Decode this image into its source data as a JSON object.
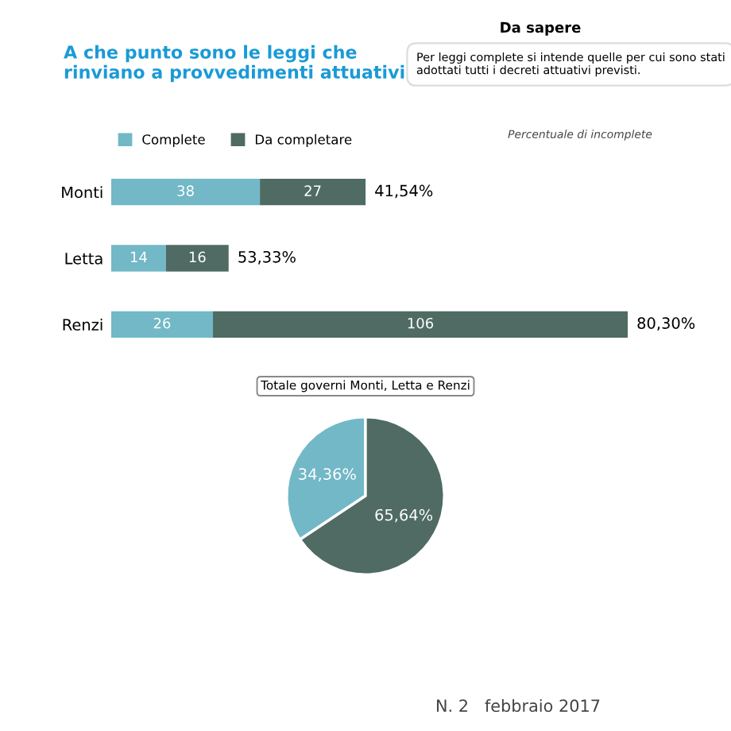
{
  "chart_data": [
    {
      "type": "bar",
      "orientation": "horizontal",
      "stacked": true,
      "title": "A che punto sono le leggi che rinviano a provvedimenti attuativi",
      "annotations": [
        "Da sapere",
        "Per leggi complete si intende quelle per cui sono stati adottati tutti i decreti attuativi previsti.",
        "Percentuale di incomplete",
        "N. 2   febbraio 2017",
        {
          "text": "41,54%",
          "x": 65,
          "y": "Monti"
        },
        {
          "text": "53,33%",
          "x": 30,
          "y": "Letta"
        },
        {
          "text": "80,30%",
          "x": 132,
          "y": "Renzi"
        }
      ],
      "categories": [
        "Monti",
        "Letta",
        "Renzi"
      ],
      "series": [
        {
          "name": "Complete",
          "color": "#72b8c7",
          "values": [
            38,
            14,
            26
          ]
        },
        {
          "name": "Da completare",
          "color": "#4f6b63",
          "values": [
            27,
            16,
            106
          ]
        }
      ],
      "data_labels": true,
      "legend": "top left"
    },
    {
      "type": "pie",
      "title": "Totale governi Monti, Letta e Renzi",
      "categories": [
        null,
        null
      ],
      "values": [
        34.36,
        65.64
      ],
      "colors": [
        "#72b8c7",
        "#4f6b63"
      ],
      "value_labels": [
        "34,36%",
        "65,64%"
      ]
    }
  ]
}
